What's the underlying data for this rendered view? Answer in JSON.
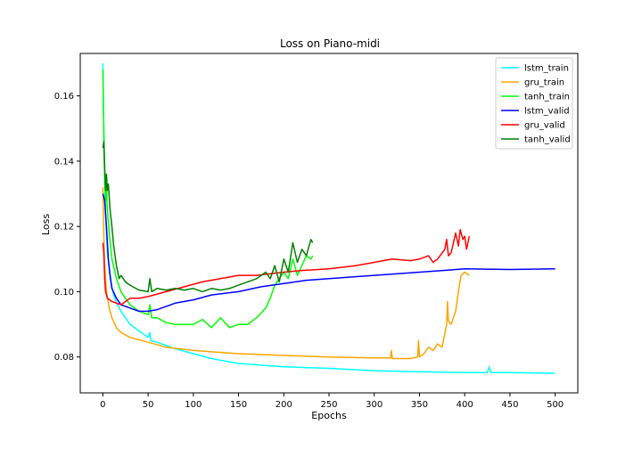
{
  "chart_data": {
    "type": "line",
    "title": "Loss on Piano-midi",
    "xlabel": "Epochs",
    "ylabel": "Loss",
    "xlim": [
      -25,
      525
    ],
    "ylim": [
      0.069,
      0.173
    ],
    "xticks": [
      0,
      50,
      100,
      150,
      200,
      250,
      300,
      350,
      400,
      450,
      500
    ],
    "yticks": [
      0.08,
      0.1,
      0.12,
      0.14,
      0.16
    ],
    "xtick_labels": [
      "0",
      "50",
      "100",
      "150",
      "200",
      "250",
      "300",
      "350",
      "400",
      "450",
      "500"
    ],
    "ytick_labels": [
      "0.08",
      "0.10",
      "0.12",
      "0.14",
      "0.16"
    ],
    "grid": false,
    "legend_position": "top-right",
    "series": [
      {
        "name": "lstm_train",
        "color": "#00ffff",
        "points": [
          [
            0,
            0.17
          ],
          [
            1,
            0.15
          ],
          [
            2,
            0.135
          ],
          [
            3,
            0.123
          ],
          [
            5,
            0.112
          ],
          [
            8,
            0.104
          ],
          [
            12,
            0.099
          ],
          [
            16,
            0.096
          ],
          [
            20,
            0.094
          ],
          [
            25,
            0.092
          ],
          [
            30,
            0.09
          ],
          [
            40,
            0.088
          ],
          [
            50,
            0.086
          ],
          [
            52,
            0.0875
          ],
          [
            53,
            0.085
          ],
          [
            60,
            0.0845
          ],
          [
            80,
            0.0825
          ],
          [
            100,
            0.081
          ],
          [
            120,
            0.0795
          ],
          [
            150,
            0.078
          ],
          [
            200,
            0.077
          ],
          [
            250,
            0.0765
          ],
          [
            300,
            0.0758
          ],
          [
            350,
            0.0755
          ],
          [
            400,
            0.0752
          ],
          [
            425,
            0.0752
          ],
          [
            427,
            0.077
          ],
          [
            429,
            0.0752
          ],
          [
            450,
            0.0752
          ],
          [
            500,
            0.075
          ]
        ]
      },
      {
        "name": "gru_train",
        "color": "#ffa500",
        "points": [
          [
            0,
            0.132
          ],
          [
            1,
            0.118
          ],
          [
            2,
            0.108
          ],
          [
            4,
            0.1
          ],
          [
            7,
            0.095
          ],
          [
            10,
            0.092
          ],
          [
            15,
            0.089
          ],
          [
            20,
            0.0875
          ],
          [
            30,
            0.086
          ],
          [
            50,
            0.0845
          ],
          [
            70,
            0.083
          ],
          [
            100,
            0.082
          ],
          [
            150,
            0.081
          ],
          [
            200,
            0.0805
          ],
          [
            250,
            0.08
          ],
          [
            300,
            0.0797
          ],
          [
            318,
            0.0797
          ],
          [
            319,
            0.082
          ],
          [
            320,
            0.0795
          ],
          [
            340,
            0.0795
          ],
          [
            348,
            0.08
          ],
          [
            349,
            0.085
          ],
          [
            350,
            0.08
          ],
          [
            355,
            0.081
          ],
          [
            360,
            0.083
          ],
          [
            365,
            0.082
          ],
          [
            370,
            0.084
          ],
          [
            375,
            0.083
          ],
          [
            380,
            0.09
          ],
          [
            381,
            0.097
          ],
          [
            382,
            0.091
          ],
          [
            385,
            0.09
          ],
          [
            390,
            0.094
          ],
          [
            393,
            0.1
          ],
          [
            396,
            0.105
          ],
          [
            400,
            0.106
          ],
          [
            405,
            0.105
          ]
        ]
      },
      {
        "name": "tanh_train",
        "color": "#00ff00",
        "points": [
          [
            0,
            0.168
          ],
          [
            1,
            0.15
          ],
          [
            2,
            0.135
          ],
          [
            3,
            0.128
          ],
          [
            4,
            0.132
          ],
          [
            5,
            0.125
          ],
          [
            7,
            0.118
          ],
          [
            10,
            0.11
          ],
          [
            15,
            0.104
          ],
          [
            20,
            0.1
          ],
          [
            25,
            0.098
          ],
          [
            30,
            0.096
          ],
          [
            40,
            0.094
          ],
          [
            50,
            0.093
          ],
          [
            52,
            0.096
          ],
          [
            54,
            0.092
          ],
          [
            60,
            0.092
          ],
          [
            70,
            0.0905
          ],
          [
            80,
            0.09
          ],
          [
            100,
            0.09
          ],
          [
            110,
            0.0915
          ],
          [
            120,
            0.089
          ],
          [
            130,
            0.092
          ],
          [
            140,
            0.089
          ],
          [
            150,
            0.09
          ],
          [
            160,
            0.09
          ],
          [
            170,
            0.092
          ],
          [
            180,
            0.095
          ],
          [
            185,
            0.098
          ],
          [
            190,
            0.102
          ],
          [
            195,
            0.104
          ],
          [
            200,
            0.106
          ],
          [
            205,
            0.104
          ],
          [
            210,
            0.11
          ],
          [
            215,
            0.105
          ],
          [
            220,
            0.108
          ],
          [
            225,
            0.111
          ],
          [
            230,
            0.11
          ],
          [
            232,
            0.111
          ]
        ]
      },
      {
        "name": "lstm_valid",
        "color": "#0000ff",
        "points": [
          [
            0,
            0.13
          ],
          [
            1,
            0.129
          ],
          [
            2,
            0.128
          ],
          [
            4,
            0.12
          ],
          [
            6,
            0.11
          ],
          [
            8,
            0.105
          ],
          [
            10,
            0.101
          ],
          [
            15,
            0.098
          ],
          [
            20,
            0.096
          ],
          [
            25,
            0.0955
          ],
          [
            30,
            0.095
          ],
          [
            40,
            0.094
          ],
          [
            50,
            0.094
          ],
          [
            60,
            0.0945
          ],
          [
            80,
            0.0965
          ],
          [
            100,
            0.0975
          ],
          [
            120,
            0.099
          ],
          [
            150,
            0.1
          ],
          [
            175,
            0.1015
          ],
          [
            200,
            0.1025
          ],
          [
            225,
            0.1035
          ],
          [
            250,
            0.104
          ],
          [
            300,
            0.105
          ],
          [
            350,
            0.106
          ],
          [
            400,
            0.107
          ],
          [
            450,
            0.1068
          ],
          [
            500,
            0.107
          ]
        ]
      },
      {
        "name": "gru_valid",
        "color": "#ff0000",
        "points": [
          [
            0,
            0.115
          ],
          [
            1,
            0.112
          ],
          [
            2,
            0.104
          ],
          [
            3,
            0.1
          ],
          [
            5,
            0.098
          ],
          [
            10,
            0.097
          ],
          [
            20,
            0.096
          ],
          [
            30,
            0.098
          ],
          [
            40,
            0.098
          ],
          [
            50,
            0.0985
          ],
          [
            70,
            0.1
          ],
          [
            90,
            0.1015
          ],
          [
            110,
            0.103
          ],
          [
            130,
            0.104
          ],
          [
            150,
            0.105
          ],
          [
            170,
            0.105
          ],
          [
            200,
            0.106
          ],
          [
            220,
            0.1065
          ],
          [
            250,
            0.107
          ],
          [
            280,
            0.108
          ],
          [
            300,
            0.109
          ],
          [
            320,
            0.11
          ],
          [
            340,
            0.1095
          ],
          [
            350,
            0.11
          ],
          [
            360,
            0.111
          ],
          [
            365,
            0.109
          ],
          [
            370,
            0.11
          ],
          [
            378,
            0.113
          ],
          [
            380,
            0.116
          ],
          [
            382,
            0.111
          ],
          [
            385,
            0.112
          ],
          [
            390,
            0.118
          ],
          [
            393,
            0.114
          ],
          [
            395,
            0.119
          ],
          [
            398,
            0.116
          ],
          [
            400,
            0.117
          ],
          [
            402,
            0.113
          ],
          [
            405,
            0.117
          ]
        ]
      },
      {
        "name": "tanh_valid",
        "color": "#008000",
        "points": [
          [
            0,
            0.144
          ],
          [
            1,
            0.146
          ],
          [
            2,
            0.138
          ],
          [
            3,
            0.131
          ],
          [
            4,
            0.136
          ],
          [
            5,
            0.131
          ],
          [
            6,
            0.133
          ],
          [
            8,
            0.125
          ],
          [
            10,
            0.12
          ],
          [
            12,
            0.114
          ],
          [
            15,
            0.108
          ],
          [
            18,
            0.104
          ],
          [
            20,
            0.105
          ],
          [
            25,
            0.103
          ],
          [
            30,
            0.102
          ],
          [
            40,
            0.1005
          ],
          [
            50,
            0.1
          ],
          [
            52,
            0.104
          ],
          [
            54,
            0.1
          ],
          [
            60,
            0.101
          ],
          [
            70,
            0.1005
          ],
          [
            80,
            0.101
          ],
          [
            90,
            0.1005
          ],
          [
            100,
            0.101
          ],
          [
            110,
            0.1
          ],
          [
            120,
            0.101
          ],
          [
            130,
            0.1005
          ],
          [
            140,
            0.101
          ],
          [
            150,
            0.102
          ],
          [
            160,
            0.103
          ],
          [
            170,
            0.104
          ],
          [
            180,
            0.106
          ],
          [
            185,
            0.104
          ],
          [
            190,
            0.108
          ],
          [
            195,
            0.103
          ],
          [
            200,
            0.11
          ],
          [
            205,
            0.106
          ],
          [
            210,
            0.115
          ],
          [
            215,
            0.109
          ],
          [
            220,
            0.113
          ],
          [
            225,
            0.111
          ],
          [
            230,
            0.116
          ],
          [
            232,
            0.115
          ]
        ]
      }
    ]
  }
}
